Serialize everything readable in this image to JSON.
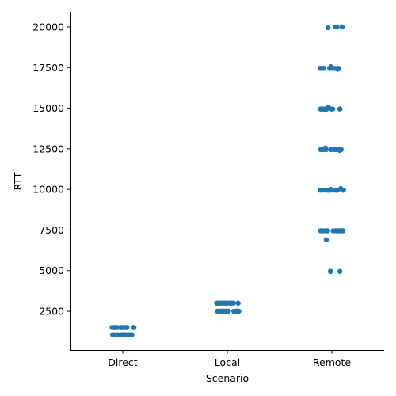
{
  "chart_data": {
    "type": "scatter",
    "subtype": "strip",
    "xlabel": "Scenario",
    "ylabel": "RTT",
    "categories": [
      "Direct",
      "Local",
      "Remote"
    ],
    "ylim": [
      0,
      20900
    ],
    "yticks": [
      2500,
      5000,
      7500,
      10000,
      12500,
      15000,
      17500,
      20000
    ],
    "ytick_labels": [
      "2500",
      "5000",
      "7500",
      "10000",
      "12500",
      "15000",
      "17500",
      "20000"
    ],
    "grid": false,
    "legend": "none",
    "color": "#1f77b4",
    "series": [
      {
        "category": "Direct",
        "values": [
          1050,
          1050,
          1050,
          1050,
          1050,
          1050,
          1050,
          1050,
          1050,
          1050,
          1050,
          1050,
          1050,
          1050,
          1050,
          1050,
          1500,
          1500,
          1500,
          1500,
          1500,
          1500,
          1500,
          1500,
          1500,
          1500,
          1500,
          1500,
          1500,
          1500,
          1500,
          1500
        ]
      },
      {
        "category": "Local",
        "values": [
          2500,
          2500,
          2500,
          2500,
          2500,
          2500,
          2500,
          2500,
          2500,
          2500,
          2500,
          2500,
          2500,
          2500,
          2500,
          2500,
          3000,
          3000,
          3000,
          3000,
          3000,
          3000,
          3000,
          3000,
          3000,
          3000,
          3000,
          3000,
          3000,
          3000,
          3000,
          3000
        ]
      },
      {
        "category": "Remote",
        "values": [
          4950,
          4950,
          4950,
          4950,
          6900,
          7450,
          7450,
          7450,
          7450,
          7450,
          7450,
          7450,
          7450,
          7450,
          7450,
          7450,
          7450,
          7450,
          7450,
          9950,
          9950,
          9950,
          9950,
          9950,
          9950,
          9950,
          9950,
          9950,
          9950,
          9950,
          9950,
          9950,
          10000,
          10050,
          12450,
          12450,
          12450,
          12450,
          12450,
          12450,
          12450,
          12450,
          12450,
          12450,
          12450,
          12450,
          12550,
          12400,
          12500,
          14950,
          14950,
          14950,
          14950,
          14950,
          14950,
          14950,
          14950,
          14950,
          14950,
          14950,
          14950,
          15050,
          14900,
          15000,
          17450,
          17450,
          17450,
          17450,
          17450,
          17450,
          17450,
          17450,
          17450,
          17450,
          17450,
          17450,
          17550,
          17400,
          19950,
          20000,
          20000,
          20000
        ]
      }
    ]
  }
}
